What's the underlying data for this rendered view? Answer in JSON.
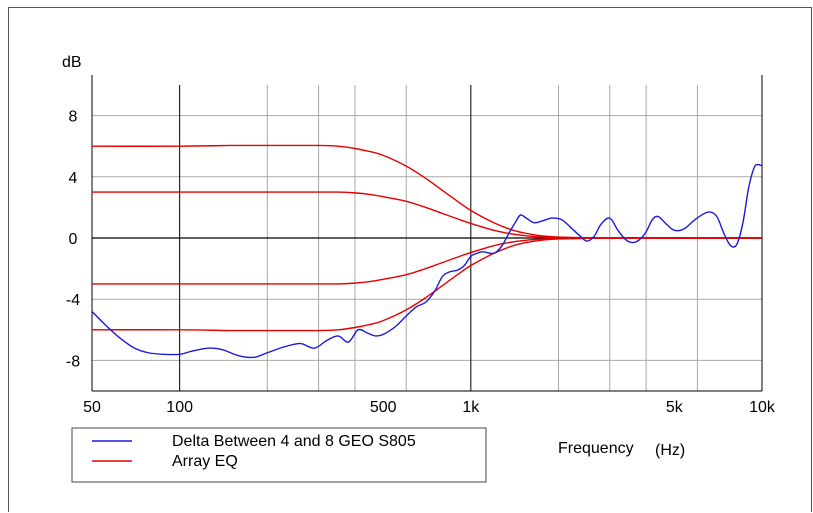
{
  "chart_data": {
    "type": "line",
    "title": "",
    "ylabel": "dB",
    "xlabel": "Frequency",
    "xlabel_unit": "(Hz)",
    "x_scale": "log",
    "xlim": [
      50,
      10000
    ],
    "ylim": [
      -10,
      10
    ],
    "grid": true,
    "legend_position": "bottom-left",
    "x_ticks": [
      {
        "value": 50,
        "label": "50"
      },
      {
        "value": 100,
        "label": "100"
      },
      {
        "value": 500,
        "label": "500"
      },
      {
        "value": 1000,
        "label": "1k"
      },
      {
        "value": 5000,
        "label": "5k"
      },
      {
        "value": 10000,
        "label": "10k"
      }
    ],
    "x_minor_grid": [
      200,
      300,
      400,
      600,
      2000,
      3000,
      4000,
      6000
    ],
    "y_ticks": [
      {
        "value": 8,
        "label": "8"
      },
      {
        "value": 4,
        "label": "4"
      },
      {
        "value": 0,
        "label": "0"
      },
      {
        "value": -4,
        "label": "-4"
      },
      {
        "value": -8,
        "label": "-8"
      }
    ],
    "y_grid": [
      8,
      4,
      0,
      -4,
      -8
    ],
    "series": [
      {
        "name": "Delta Between 4 and 8 GEO S805",
        "color": "#1a1adc",
        "x": [
          50,
          55,
          62,
          70,
          78,
          88,
          100,
          110,
          125,
          140,
          160,
          180,
          200,
          230,
          260,
          290,
          320,
          350,
          380,
          410,
          440,
          470,
          500,
          550,
          600,
          650,
          700,
          750,
          800,
          850,
          900,
          950,
          1000,
          1050,
          1100,
          1200,
          1280,
          1350,
          1420,
          1480,
          1550,
          1650,
          1750,
          1900,
          2050,
          2200,
          2350,
          2500,
          2650,
          2800,
          3000,
          3200,
          3400,
          3600,
          3800,
          4000,
          4200,
          4400,
          4700,
          5000,
          5400,
          5800,
          6200,
          6600,
          7000,
          7400,
          7800,
          8200,
          8600,
          9000,
          9400,
          9700,
          10000
        ],
        "values": [
          -4.8,
          -5.6,
          -6.5,
          -7.2,
          -7.5,
          -7.6,
          -7.6,
          -7.4,
          -7.2,
          -7.3,
          -7.7,
          -7.8,
          -7.5,
          -7.1,
          -6.9,
          -7.2,
          -6.7,
          -6.4,
          -6.8,
          -6.0,
          -6.2,
          -6.4,
          -6.3,
          -5.8,
          -5.1,
          -4.5,
          -4.2,
          -3.5,
          -2.5,
          -2.2,
          -2.1,
          -1.8,
          -1.2,
          -1.0,
          -0.9,
          -1.0,
          -0.5,
          0.3,
          1.0,
          1.5,
          1.3,
          1.0,
          1.1,
          1.3,
          1.2,
          0.7,
          0.2,
          -0.2,
          0.1,
          0.9,
          1.3,
          0.5,
          -0.1,
          -0.3,
          -0.1,
          0.4,
          1.2,
          1.4,
          0.9,
          0.5,
          0.6,
          1.1,
          1.5,
          1.7,
          1.4,
          0.3,
          -0.5,
          -0.4,
          1.0,
          3.3,
          4.6,
          4.8,
          4.7
        ]
      },
      {
        "name": "Array EQ",
        "color": "#e60000",
        "curves": [
          {
            "x": [
              50,
              100,
              150,
              200,
              250,
              300,
              350,
              400,
              450,
              500,
              600,
              700,
              800,
              900,
              1000,
              1200,
              1400,
              1600,
              1800,
              2000,
              2500,
              3000,
              4000,
              5000,
              7000,
              10000
            ],
            "values": [
              6.0,
              6.0,
              6.05,
              6.05,
              6.05,
              6.05,
              6.0,
              5.85,
              5.65,
              5.4,
              4.7,
              3.9,
              3.1,
              2.4,
              1.8,
              1.0,
              0.5,
              0.25,
              0.12,
              0.06,
              0.02,
              0.0,
              0.0,
              0.0,
              0.0,
              0.0
            ]
          },
          {
            "x": [
              50,
              100,
              150,
              200,
              250,
              300,
              350,
              400,
              450,
              500,
              600,
              700,
              800,
              900,
              1000,
              1200,
              1400,
              1600,
              1800,
              2000,
              2500,
              3000,
              4000,
              5000,
              7000,
              10000
            ],
            "values": [
              3.0,
              3.0,
              3.0,
              3.0,
              3.0,
              3.0,
              3.0,
              2.95,
              2.85,
              2.7,
              2.4,
              2.0,
              1.6,
              1.25,
              0.95,
              0.5,
              0.25,
              0.12,
              0.06,
              0.03,
              0.01,
              0.0,
              0.0,
              0.0,
              0.0,
              0.0
            ]
          },
          {
            "x": [
              50,
              100,
              150,
              200,
              250,
              300,
              350,
              400,
              450,
              500,
              600,
              700,
              800,
              900,
              1000,
              1200,
              1400,
              1600,
              1800,
              2000,
              2500,
              3000,
              4000,
              5000,
              7000,
              10000
            ],
            "values": [
              -3.0,
              -3.0,
              -3.0,
              -3.0,
              -3.0,
              -3.0,
              -3.0,
              -2.95,
              -2.85,
              -2.7,
              -2.4,
              -2.0,
              -1.6,
              -1.25,
              -0.95,
              -0.5,
              -0.25,
              -0.12,
              -0.06,
              -0.03,
              -0.01,
              0.0,
              0.0,
              0.0,
              0.0,
              0.0
            ]
          },
          {
            "x": [
              50,
              100,
              150,
              200,
              250,
              300,
              350,
              400,
              450,
              500,
              600,
              700,
              800,
              900,
              1000,
              1200,
              1400,
              1600,
              1800,
              2000,
              2500,
              3000,
              4000,
              5000,
              7000,
              10000
            ],
            "values": [
              -6.0,
              -6.0,
              -6.05,
              -6.05,
              -6.05,
              -6.05,
              -6.0,
              -5.85,
              -5.65,
              -5.4,
              -4.7,
              -3.9,
              -3.1,
              -2.4,
              -1.8,
              -1.0,
              -0.5,
              -0.25,
              -0.12,
              -0.06,
              -0.02,
              0.0,
              0.0,
              0.0,
              0.0,
              0.0
            ]
          }
        ]
      }
    ]
  }
}
